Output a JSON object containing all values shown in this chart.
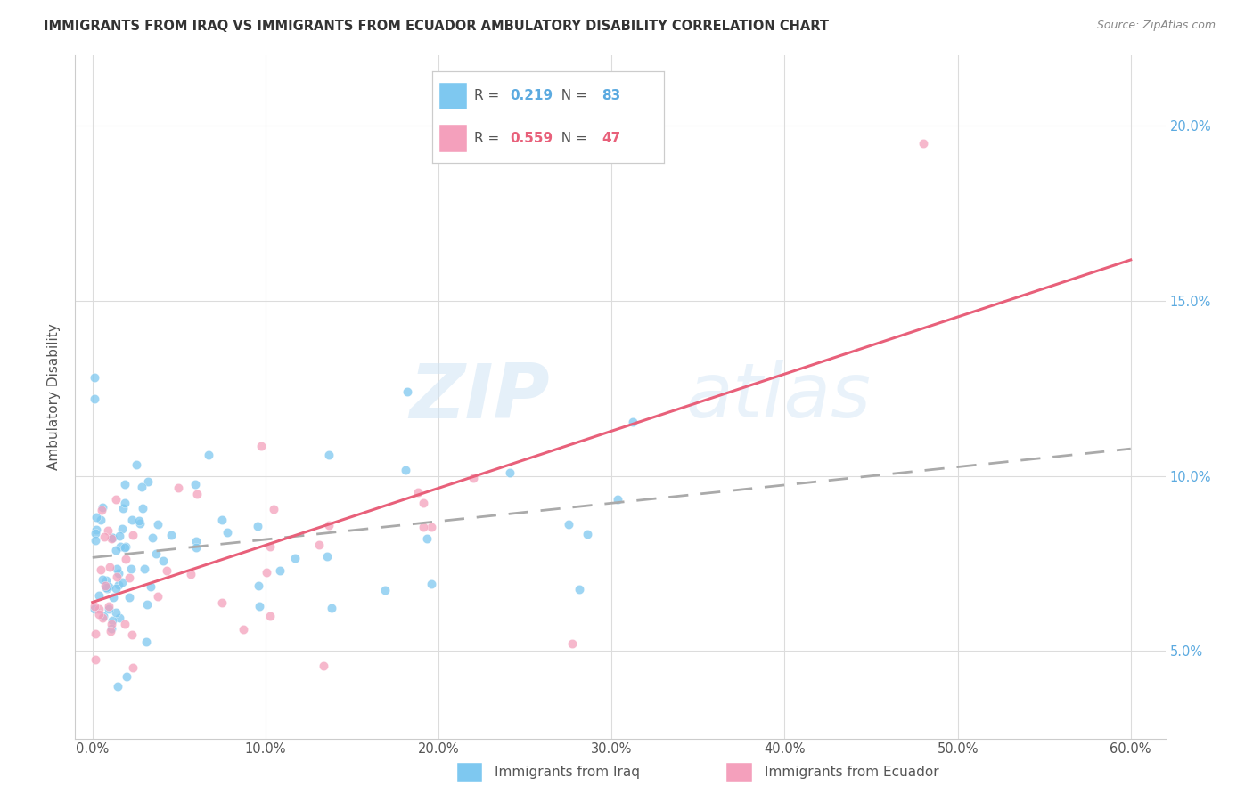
{
  "title": "IMMIGRANTS FROM IRAQ VS IMMIGRANTS FROM ECUADOR AMBULATORY DISABILITY CORRELATION CHART",
  "source": "Source: ZipAtlas.com",
  "ylabel": "Ambulatory Disability",
  "xlabel_ticks": [
    "0.0%",
    "10.0%",
    "20.0%",
    "30.0%",
    "40.0%",
    "50.0%",
    "60.0%"
  ],
  "xlabel_vals": [
    0,
    10,
    20,
    30,
    40,
    50,
    60
  ],
  "ylabel_ticks": [
    "5.0%",
    "10.0%",
    "15.0%",
    "20.0%"
  ],
  "ylabel_vals": [
    5,
    10,
    15,
    20
  ],
  "xlim": [
    -1,
    62
  ],
  "ylim": [
    2.5,
    22
  ],
  "iraq_R": "0.219",
  "iraq_N": "83",
  "ecuador_R": "0.559",
  "ecuador_N": "47",
  "iraq_color": "#7EC8F0",
  "ecuador_color": "#F4A0BC",
  "iraq_line_color": "#5BAAE0",
  "ecuador_line_color": "#E8607A",
  "legend_label_iraq": "Immigrants from Iraq",
  "legend_label_ecuador": "Immigrants from Ecuador",
  "watermark_zip": "ZIP",
  "watermark_atlas": "atlas",
  "background_color": "#FFFFFF",
  "grid_color": "#DCDCDC"
}
